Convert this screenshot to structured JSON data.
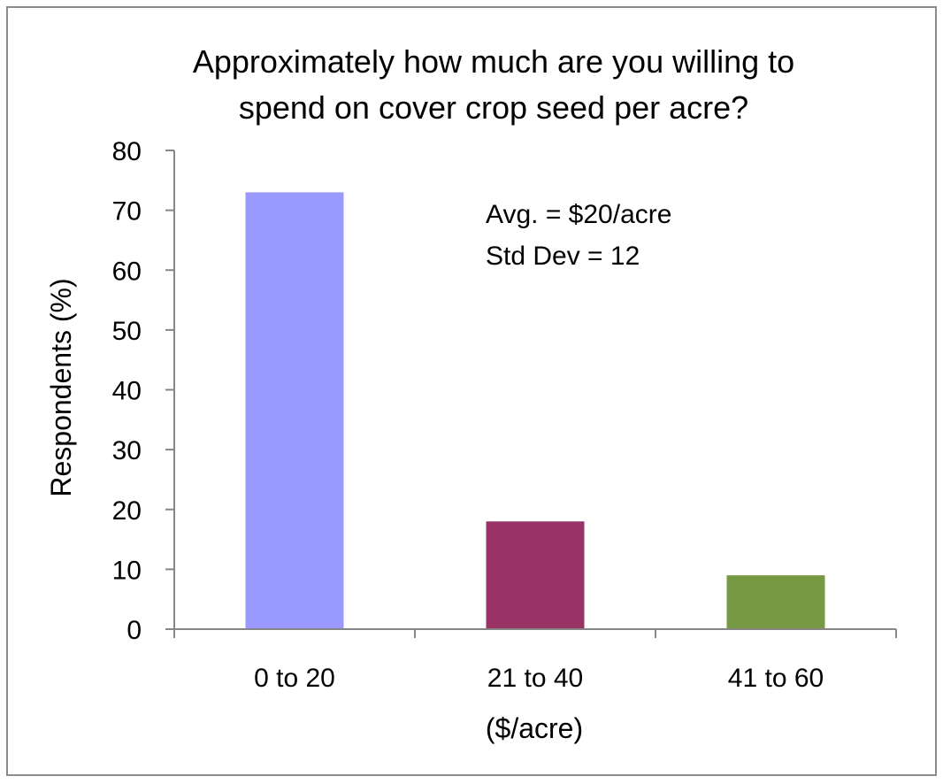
{
  "chart_data": {
    "type": "bar",
    "title_lines": [
      "Approximately how much are you willing to",
      "spend on cover crop seed per acre?"
    ],
    "categories": [
      "0 to 20",
      "21 to 40",
      "41 to 60"
    ],
    "values": [
      73,
      18,
      9
    ],
    "bar_colors": [
      "#9999ff",
      "#993366",
      "#779944"
    ],
    "xlabel": "($/acre)",
    "ylabel": "Respondents (%)",
    "ylim": [
      0,
      80
    ],
    "yticks": [
      0,
      10,
      20,
      30,
      40,
      50,
      60,
      70,
      80
    ],
    "annotation_lines": [
      "Avg. = $20/acre",
      "Std Dev = 12"
    ],
    "grid": false,
    "legend": "none"
  }
}
